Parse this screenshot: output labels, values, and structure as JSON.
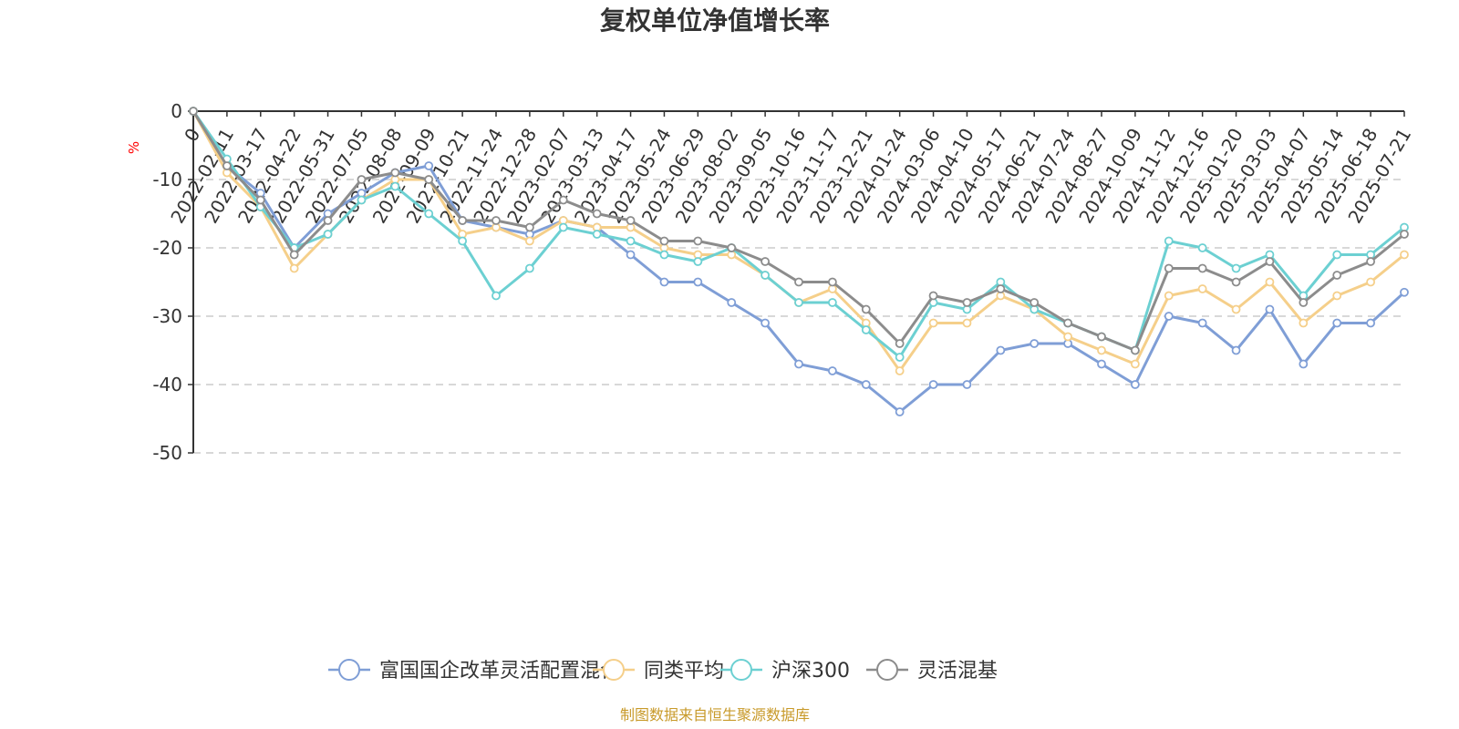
{
  "chart_data": {
    "type": "line",
    "title": "复权单位净值增长率",
    "unit": "%",
    "ylim": [
      -50,
      0
    ],
    "yticks": [
      0,
      -10,
      -20,
      -30,
      -40,
      -50
    ],
    "grid": true,
    "legend_position": "bottom",
    "x_labels": [
      "0",
      "2022-02-11",
      "2022-03-17",
      "2022-04-22",
      "2022-05-31",
      "2022-07-05",
      "2022-08-08",
      "2022-09-09",
      "2022-10-21",
      "2022-11-24",
      "2022-12-28",
      "2023-02-07",
      "2023-03-13",
      "2023-04-17",
      "2023-05-24",
      "2023-06-29",
      "2023-08-02",
      "2023-09-05",
      "2023-10-16",
      "2023-11-17",
      "2023-12-21",
      "2024-01-24",
      "2024-03-06",
      "2024-04-10",
      "2024-05-17",
      "2024-06-21",
      "2024-07-24",
      "2024-08-27",
      "2024-10-09",
      "2024-11-12",
      "2024-12-16",
      "2025-01-20",
      "2025-03-03",
      "2025-04-07",
      "2025-05-14",
      "2025-06-18",
      "2025-07-21"
    ],
    "series": [
      {
        "name": "富国国企改革灵活配置混合",
        "color": "#7f9ed6",
        "values": [
          0,
          -8,
          -12,
          -20,
          -15,
          -12,
          -9,
          -8,
          -16,
          -17,
          -18,
          -16,
          -17,
          -21,
          -25,
          -25,
          -28,
          -31,
          -37,
          -38,
          -40,
          -44,
          -40,
          -40,
          -35,
          -34,
          -34,
          -37,
          -40,
          -30,
          -31,
          -35,
          -29,
          -37,
          -31,
          -31,
          -26.5
        ]
      },
      {
        "name": "同类平均",
        "color": "#f5cf8a",
        "values": [
          0,
          -9,
          -14,
          -23,
          -18,
          -13,
          -10,
          -10,
          -18,
          -17,
          -19,
          -16,
          -17,
          -17,
          -20,
          -21,
          -21,
          -24,
          -28,
          -26,
          -31,
          -38,
          -31,
          -31,
          -27,
          -29,
          -33,
          -35,
          -37,
          -27,
          -26,
          -29,
          -25,
          -31,
          -27,
          -25,
          -21
        ]
      },
      {
        "name": "沪深300",
        "color": "#6cd0d2",
        "values": [
          0,
          -7,
          -14,
          -20,
          -18,
          -13,
          -11,
          -15,
          -19,
          -27,
          -23,
          -17,
          -18,
          -19,
          -21,
          -22,
          -20,
          -24,
          -28,
          -28,
          -32,
          -36,
          -28,
          -29,
          -25,
          -29,
          -31,
          -33,
          -35,
          -19,
          -20,
          -23,
          -21,
          -27,
          -21,
          -21,
          -17
        ]
      },
      {
        "name": "灵活混基",
        "color": "#8c8c8c",
        "values": [
          0,
          -8,
          -13,
          -21,
          -16,
          -10,
          -9,
          -10,
          -16,
          -16,
          -17,
          -13,
          -15,
          -16,
          -19,
          -19,
          -20,
          -22,
          -25,
          -25,
          -29,
          -34,
          -27,
          -28,
          -26,
          -28,
          -31,
          -33,
          -35,
          -23,
          -23,
          -25,
          -22,
          -28,
          -24,
          -22,
          -18
        ]
      }
    ]
  },
  "source_note": "制图数据来自恒生聚源数据库"
}
